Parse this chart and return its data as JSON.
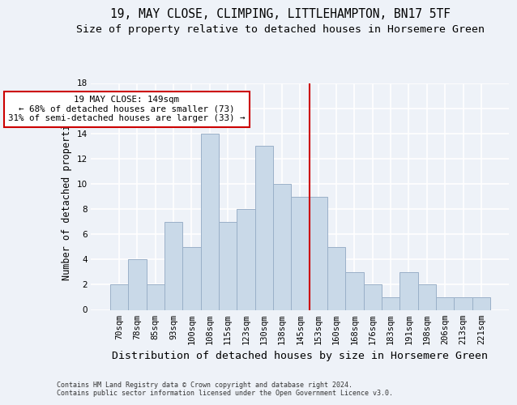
{
  "title1": "19, MAY CLOSE, CLIMPING, LITTLEHAMPTON, BN17 5TF",
  "title2": "Size of property relative to detached houses in Horsemere Green",
  "xlabel": "Distribution of detached houses by size in Horsemere Green",
  "ylabel": "Number of detached properties",
  "categories": [
    "70sqm",
    "78sqm",
    "85sqm",
    "93sqm",
    "100sqm",
    "108sqm",
    "115sqm",
    "123sqm",
    "130sqm",
    "138sqm",
    "145sqm",
    "153sqm",
    "160sqm",
    "168sqm",
    "176sqm",
    "183sqm",
    "191sqm",
    "198sqm",
    "206sqm",
    "213sqm",
    "221sqm"
  ],
  "values": [
    2,
    4,
    2,
    7,
    5,
    14,
    7,
    8,
    13,
    10,
    9,
    9,
    5,
    3,
    2,
    1,
    3,
    2,
    1,
    1,
    1
  ],
  "bar_color": "#c9d9e8",
  "bar_edge_color": "#9ab0c8",
  "vline_color": "#cc0000",
  "annotation_text": "19 MAY CLOSE: 149sqm\n← 68% of detached houses are smaller (73)\n31% of semi-detached houses are larger (33) →",
  "ylim": [
    0,
    18
  ],
  "yticks": [
    0,
    2,
    4,
    6,
    8,
    10,
    12,
    14,
    16,
    18
  ],
  "footer": "Contains HM Land Registry data © Crown copyright and database right 2024.\nContains public sector information licensed under the Open Government Licence v3.0.",
  "bg_color": "#eef2f8",
  "grid_color": "#ffffff",
  "title1_fontsize": 10.5,
  "title2_fontsize": 9.5,
  "tick_fontsize": 7.5,
  "ylabel_fontsize": 8.5,
  "xlabel_fontsize": 9.5,
  "footer_fontsize": 6.0,
  "annot_fontsize": 7.8
}
